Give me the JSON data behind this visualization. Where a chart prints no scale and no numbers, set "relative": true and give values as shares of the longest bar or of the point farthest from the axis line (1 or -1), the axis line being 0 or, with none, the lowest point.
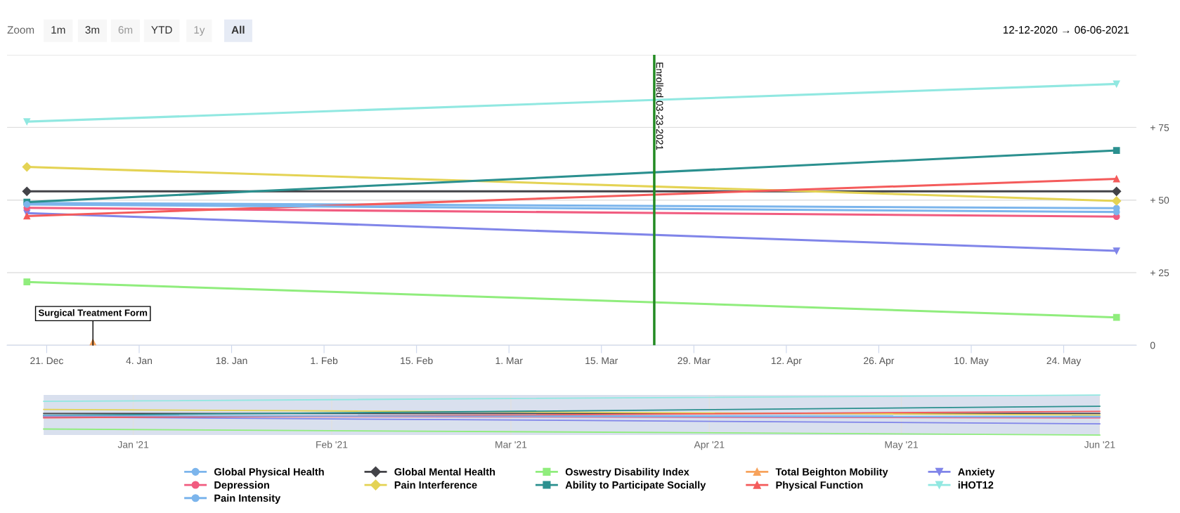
{
  "chart_data": [
    {
      "type": "line",
      "x": [
        "2020-12-18",
        "2021-06-01"
      ],
      "series": [
        {
          "name": "Global Physical Health",
          "color": "#7cb5ec",
          "marker": "circle",
          "values": [
            49,
            47.2
          ]
        },
        {
          "name": "Global Mental Health",
          "color": "#434348",
          "marker": "diamond",
          "values": [
            53,
            53
          ]
        },
        {
          "name": "Oswestry Disability Index",
          "color": "#90ed7d",
          "marker": "square",
          "values": [
            21.8,
            9.6
          ]
        },
        {
          "name": "Total Beighton Mobility",
          "color": "#f7a35c",
          "marker": "triangle",
          "x": [
            "2020-12-28"
          ],
          "values": [
            1
          ]
        },
        {
          "name": "Anxiety",
          "color": "#8085e9",
          "marker": "triangle-down",
          "values": [
            45.5,
            32.5
          ]
        },
        {
          "name": "Depression",
          "color": "#f15c80",
          "marker": "circle",
          "values": [
            47.3,
            44.3
          ]
        },
        {
          "name": "Pain Interference",
          "color": "#e4d354",
          "marker": "diamond",
          "values": [
            61.4,
            49.7
          ]
        },
        {
          "name": "Ability to Participate Socially",
          "color": "#2b908f",
          "marker": "square",
          "values": [
            49.3,
            67.1
          ]
        },
        {
          "name": "Physical Function",
          "color": "#f45b5b",
          "marker": "triangle",
          "values": [
            44.5,
            57.3
          ]
        },
        {
          "name": "iHOT12",
          "color": "#91e8e1",
          "marker": "triangle-down",
          "values": [
            77,
            90
          ]
        },
        {
          "name": "Pain Intensity",
          "color": "#7cb5ec",
          "marker": "circle",
          "values": [
            48.5,
            45.9
          ]
        }
      ],
      "xlim": [
        "2020-12-15",
        "2021-06-04"
      ],
      "xticks": [
        {
          "value": "2020-12-21",
          "label": "21. Dec"
        },
        {
          "value": "2021-01-04",
          "label": "4. Jan"
        },
        {
          "value": "2021-01-18",
          "label": "18. Jan"
        },
        {
          "value": "2021-02-01",
          "label": "1. Feb"
        },
        {
          "value": "2021-02-15",
          "label": "15. Feb"
        },
        {
          "value": "2021-03-01",
          "label": "1. Mar"
        },
        {
          "value": "2021-03-15",
          "label": "15. Mar"
        },
        {
          "value": "2021-03-29",
          "label": "29. Mar"
        },
        {
          "value": "2021-04-12",
          "label": "12. Apr"
        },
        {
          "value": "2021-04-26",
          "label": "26. Apr"
        },
        {
          "value": "2021-05-10",
          "label": "10. May"
        },
        {
          "value": "2021-05-24",
          "label": "24. May"
        }
      ],
      "ylim": [
        0,
        100
      ],
      "yticks": [
        0,
        {
          "value": 25,
          "label": "+ 25"
        },
        {
          "value": 50,
          "label": "+ 50"
        },
        {
          "value": 75,
          "label": "+ 75"
        },
        {
          "value": 100,
          "label": null
        }
      ],
      "grid": "y",
      "legend": "bottom",
      "ref_lines": [
        {
          "axis": "x",
          "value": "2021-03-23",
          "label": "Enrolled 03-23-2021",
          "color": "#228b22"
        }
      ],
      "annotations": [
        "Zoom",
        "1m",
        "3m",
        "6m",
        "YTD",
        "1y",
        "All",
        "12-12-2020 → 06-06-2021",
        {
          "text": "Surgical Treatment Form",
          "x": "2020-12-28",
          "y": 0
        }
      ]
    },
    {
      "type": "line",
      "relative": true,
      "x": [
        "2020-12-18",
        "2021-06-01"
      ],
      "series": [
        {
          "color": "#7cb5ec",
          "values": [
            0.49,
            0.47
          ]
        },
        {
          "color": "#434348",
          "values": [
            0.54,
            0.54
          ]
        },
        {
          "color": "#90ed7d",
          "values": [
            0.15,
            0
          ]
        },
        {
          "color": "#8085e9",
          "values": [
            0.45,
            0.28
          ]
        },
        {
          "color": "#f15c80",
          "values": [
            0.47,
            0.43
          ]
        },
        {
          "color": "#e4d354",
          "values": [
            0.64,
            0.5
          ]
        },
        {
          "color": "#2b908f",
          "values": [
            0.49,
            0.72
          ]
        },
        {
          "color": "#f45b5b",
          "values": [
            0.43,
            0.59
          ]
        },
        {
          "color": "#91e8e1",
          "values": [
            0.84,
            1
          ]
        },
        {
          "color": "#7cb5ec",
          "values": [
            0.48,
            0.45
          ]
        }
      ],
      "xlim": [
        "2020-12-18",
        "2021-06-01"
      ],
      "xticks": [
        {
          "value": "2021-01-01",
          "label": "Jan '21"
        },
        {
          "value": "2021-02-01",
          "label": "Feb '21"
        },
        {
          "value": "2021-03-01",
          "label": "Mar '21"
        },
        {
          "value": "2021-04-01",
          "label": "Apr '21"
        },
        {
          "value": "2021-05-01",
          "label": "May '21"
        },
        {
          "value": "2021-06-01",
          "label": "Jun '21"
        }
      ],
      "grid": "x",
      "tick_labels": "x"
    }
  ]
}
